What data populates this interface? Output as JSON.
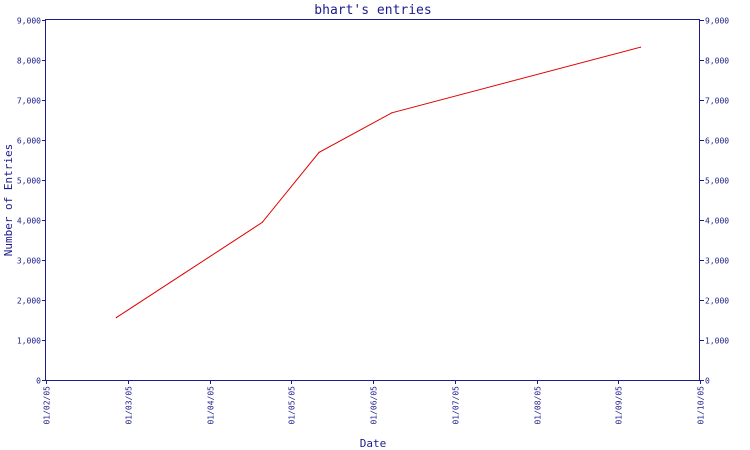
{
  "chart_data": {
    "type": "line",
    "title": "bhart's entries",
    "xlabel": "Date",
    "ylabel": "Number of Entries",
    "x_ticks": [
      "01/02/05",
      "01/03/05",
      "01/04/05",
      "01/05/05",
      "01/06/05",
      "01/07/05",
      "01/08/05",
      "01/09/05",
      "01/10/05"
    ],
    "y_ticks": [
      "0",
      "1,000",
      "2,000",
      "3,000",
      "4,000",
      "5,000",
      "6,000",
      "7,000",
      "8,000",
      "9,000"
    ],
    "ylim": [
      0,
      9000
    ],
    "xlim": [
      "2005-02-01",
      "2005-10-01"
    ],
    "grid": false,
    "legend": "none",
    "colors": {
      "axis": "#1c1c8c",
      "line": "#e00000"
    },
    "series": [
      {
        "x": [
          "2005-02-27",
          "2005-03-24",
          "2005-04-22",
          "2005-05-13",
          "2005-06-09",
          "2005-09-09"
        ],
        "y": [
          1560,
          2660,
          3940,
          5690,
          6680,
          8320
        ]
      }
    ]
  }
}
